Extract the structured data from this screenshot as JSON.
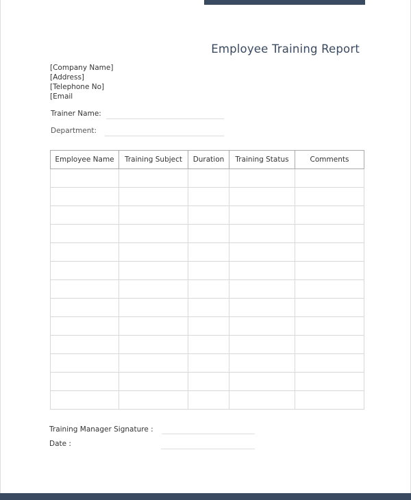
{
  "title": "Employee Training Report",
  "company": {
    "name": "[Company Name]",
    "address": "[Address]",
    "telephone": "[Telephone No]",
    "email": "[Email"
  },
  "fields": {
    "trainer_name": "Trainer Name:",
    "department": "Department:"
  },
  "table": {
    "columns": [
      "Employee Name",
      "Training Subject",
      "Duration",
      "Training Status",
      "Comments"
    ],
    "empty_rows": 13
  },
  "footer": {
    "signature": "Training Manager Signature :",
    "date": "Date :"
  },
  "colors": {
    "accent": "#3a4a60"
  }
}
